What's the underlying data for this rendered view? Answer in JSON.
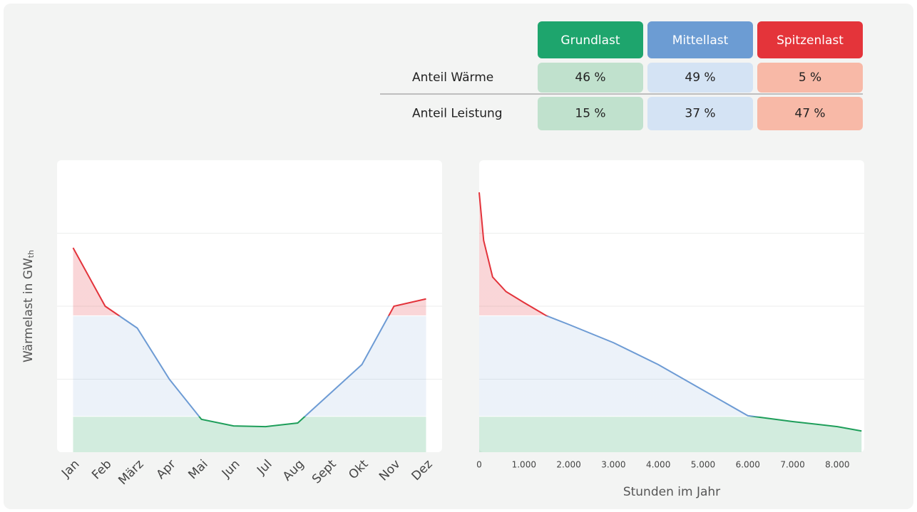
{
  "table": {
    "columns": [
      {
        "label": "Grundlast",
        "color": "#1ea56d",
        "cell_color": "#c0e1cd"
      },
      {
        "label": "Mittellast",
        "color": "#6c9cd3",
        "cell_color": "#d4e3f4"
      },
      {
        "label": "Spitzenlast",
        "color": "#e4343a",
        "cell_color": "#f8b9a7"
      }
    ],
    "rows": [
      {
        "label": "Anteil Wärme",
        "cells": [
          "46 %",
          "49 %",
          "5 %"
        ]
      },
      {
        "label": "Anteil Leistung",
        "cells": [
          "15 %",
          "37 %",
          "47 %"
        ]
      }
    ]
  },
  "chart_data": [
    {
      "type": "line",
      "y_label": "Wärmelast in GW",
      "y_label_sub": "th",
      "categories": [
        "Jan",
        "Feb",
        "März",
        "Apr",
        "Mai",
        "Jun",
        "Jul",
        "Aug",
        "Sept",
        "Okt",
        "Nov",
        "Dez"
      ],
      "values": [
        2.8,
        2.0,
        1.7,
        1.0,
        0.45,
        0.36,
        0.35,
        0.4,
        0.8,
        1.2,
        2.0,
        2.1
      ],
      "ylim": [
        0,
        4
      ],
      "yticks": [
        1,
        2,
        3
      ],
      "grid": true,
      "base_load": 0.49,
      "mid_load": 1.87,
      "colors": {
        "base": "#1e9e5a",
        "mid": "#6d9bd4",
        "peak": "#e3333b"
      }
    },
    {
      "type": "duration",
      "x_label": "Stunden im Jahr",
      "x": [
        0,
        100,
        300,
        600,
        1000,
        1500,
        2000,
        3000,
        4000,
        5000,
        6000,
        7000,
        8000,
        8540
      ],
      "values": [
        3.56,
        2.9,
        2.4,
        2.2,
        2.05,
        1.87,
        1.75,
        1.5,
        1.2,
        0.85,
        0.5,
        0.42,
        0.35,
        0.29
      ],
      "xlim": [
        0,
        8600
      ],
      "xticks": [
        0,
        {
          "value": 1000,
          "label": "1.000"
        },
        {
          "value": 2000,
          "label": "2.000"
        },
        {
          "value": 3000,
          "label": "3.000"
        },
        {
          "value": 4000,
          "label": "4.000"
        },
        {
          "value": 5000,
          "label": "5.000"
        },
        {
          "value": 6000,
          "label": "6.000"
        },
        {
          "value": 7000,
          "label": "7.000"
        },
        {
          "value": 8000,
          "label": "8.000"
        }
      ],
      "ylim": [
        0,
        4
      ],
      "yticks": [
        1,
        2,
        3
      ],
      "grid": true,
      "base_load": 0.49,
      "mid_load": 1.87,
      "colors": {
        "base": "#1e9e5a",
        "mid": "#6d9bd4",
        "peak": "#e3333b"
      }
    }
  ]
}
